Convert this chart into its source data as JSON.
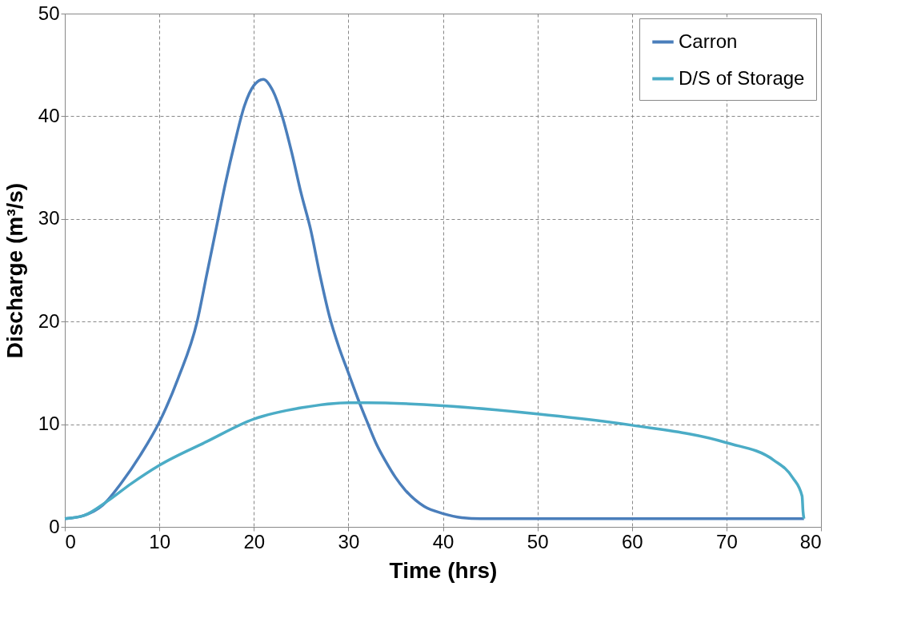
{
  "chart_data": {
    "type": "line",
    "xlabel": "Time (hrs)",
    "ylabel": "Discharge (m³/s)",
    "xlim": [
      0,
      80
    ],
    "ylim": [
      0,
      50
    ],
    "xticks": [
      0,
      10,
      20,
      30,
      40,
      50,
      60,
      70,
      80
    ],
    "yticks": [
      0,
      10,
      20,
      30,
      40,
      50
    ],
    "grid": true,
    "legend": "top right",
    "marker": "none",
    "line_style": "solid",
    "series": [
      {
        "name": "Carron",
        "color": "#4a7ebb",
        "x": [
          0,
          2,
          4,
          6,
          8,
          10,
          12,
          14,
          15,
          16,
          17,
          18,
          19,
          20,
          21,
          22,
          23,
          24,
          25,
          26,
          27,
          28,
          29,
          30,
          31,
          32,
          33,
          34,
          35,
          36,
          38,
          40,
          42,
          44,
          50,
          60,
          70,
          78.2
        ],
        "values": [
          0.8,
          1.1,
          2.1,
          4.3,
          7.0,
          10.2,
          14.5,
          20.0,
          24.5,
          29.0,
          33.5,
          37.5,
          41.0,
          43.0,
          43.6,
          42.5,
          40.0,
          36.5,
          32.5,
          29.0,
          24.5,
          20.5,
          17.5,
          15.0,
          12.5,
          10.2,
          8.0,
          6.3,
          4.8,
          3.6,
          2.0,
          1.3,
          0.9,
          0.8,
          0.8,
          0.8,
          0.8,
          0.8
        ]
      },
      {
        "name": "D/S of Storage",
        "color": "#4bacc6",
        "x": [
          0,
          2,
          4.5,
          7,
          10,
          15,
          20,
          25,
          30,
          32,
          40,
          50,
          60,
          70,
          75,
          77,
          78,
          78.1,
          78.2
        ],
        "values": [
          0.8,
          1.1,
          2.5,
          4.2,
          6.0,
          8.3,
          10.5,
          11.6,
          12.1,
          12.1,
          11.8,
          11.0,
          9.9,
          8.2,
          6.5,
          4.8,
          3.0,
          1.5,
          0.8
        ]
      }
    ]
  }
}
